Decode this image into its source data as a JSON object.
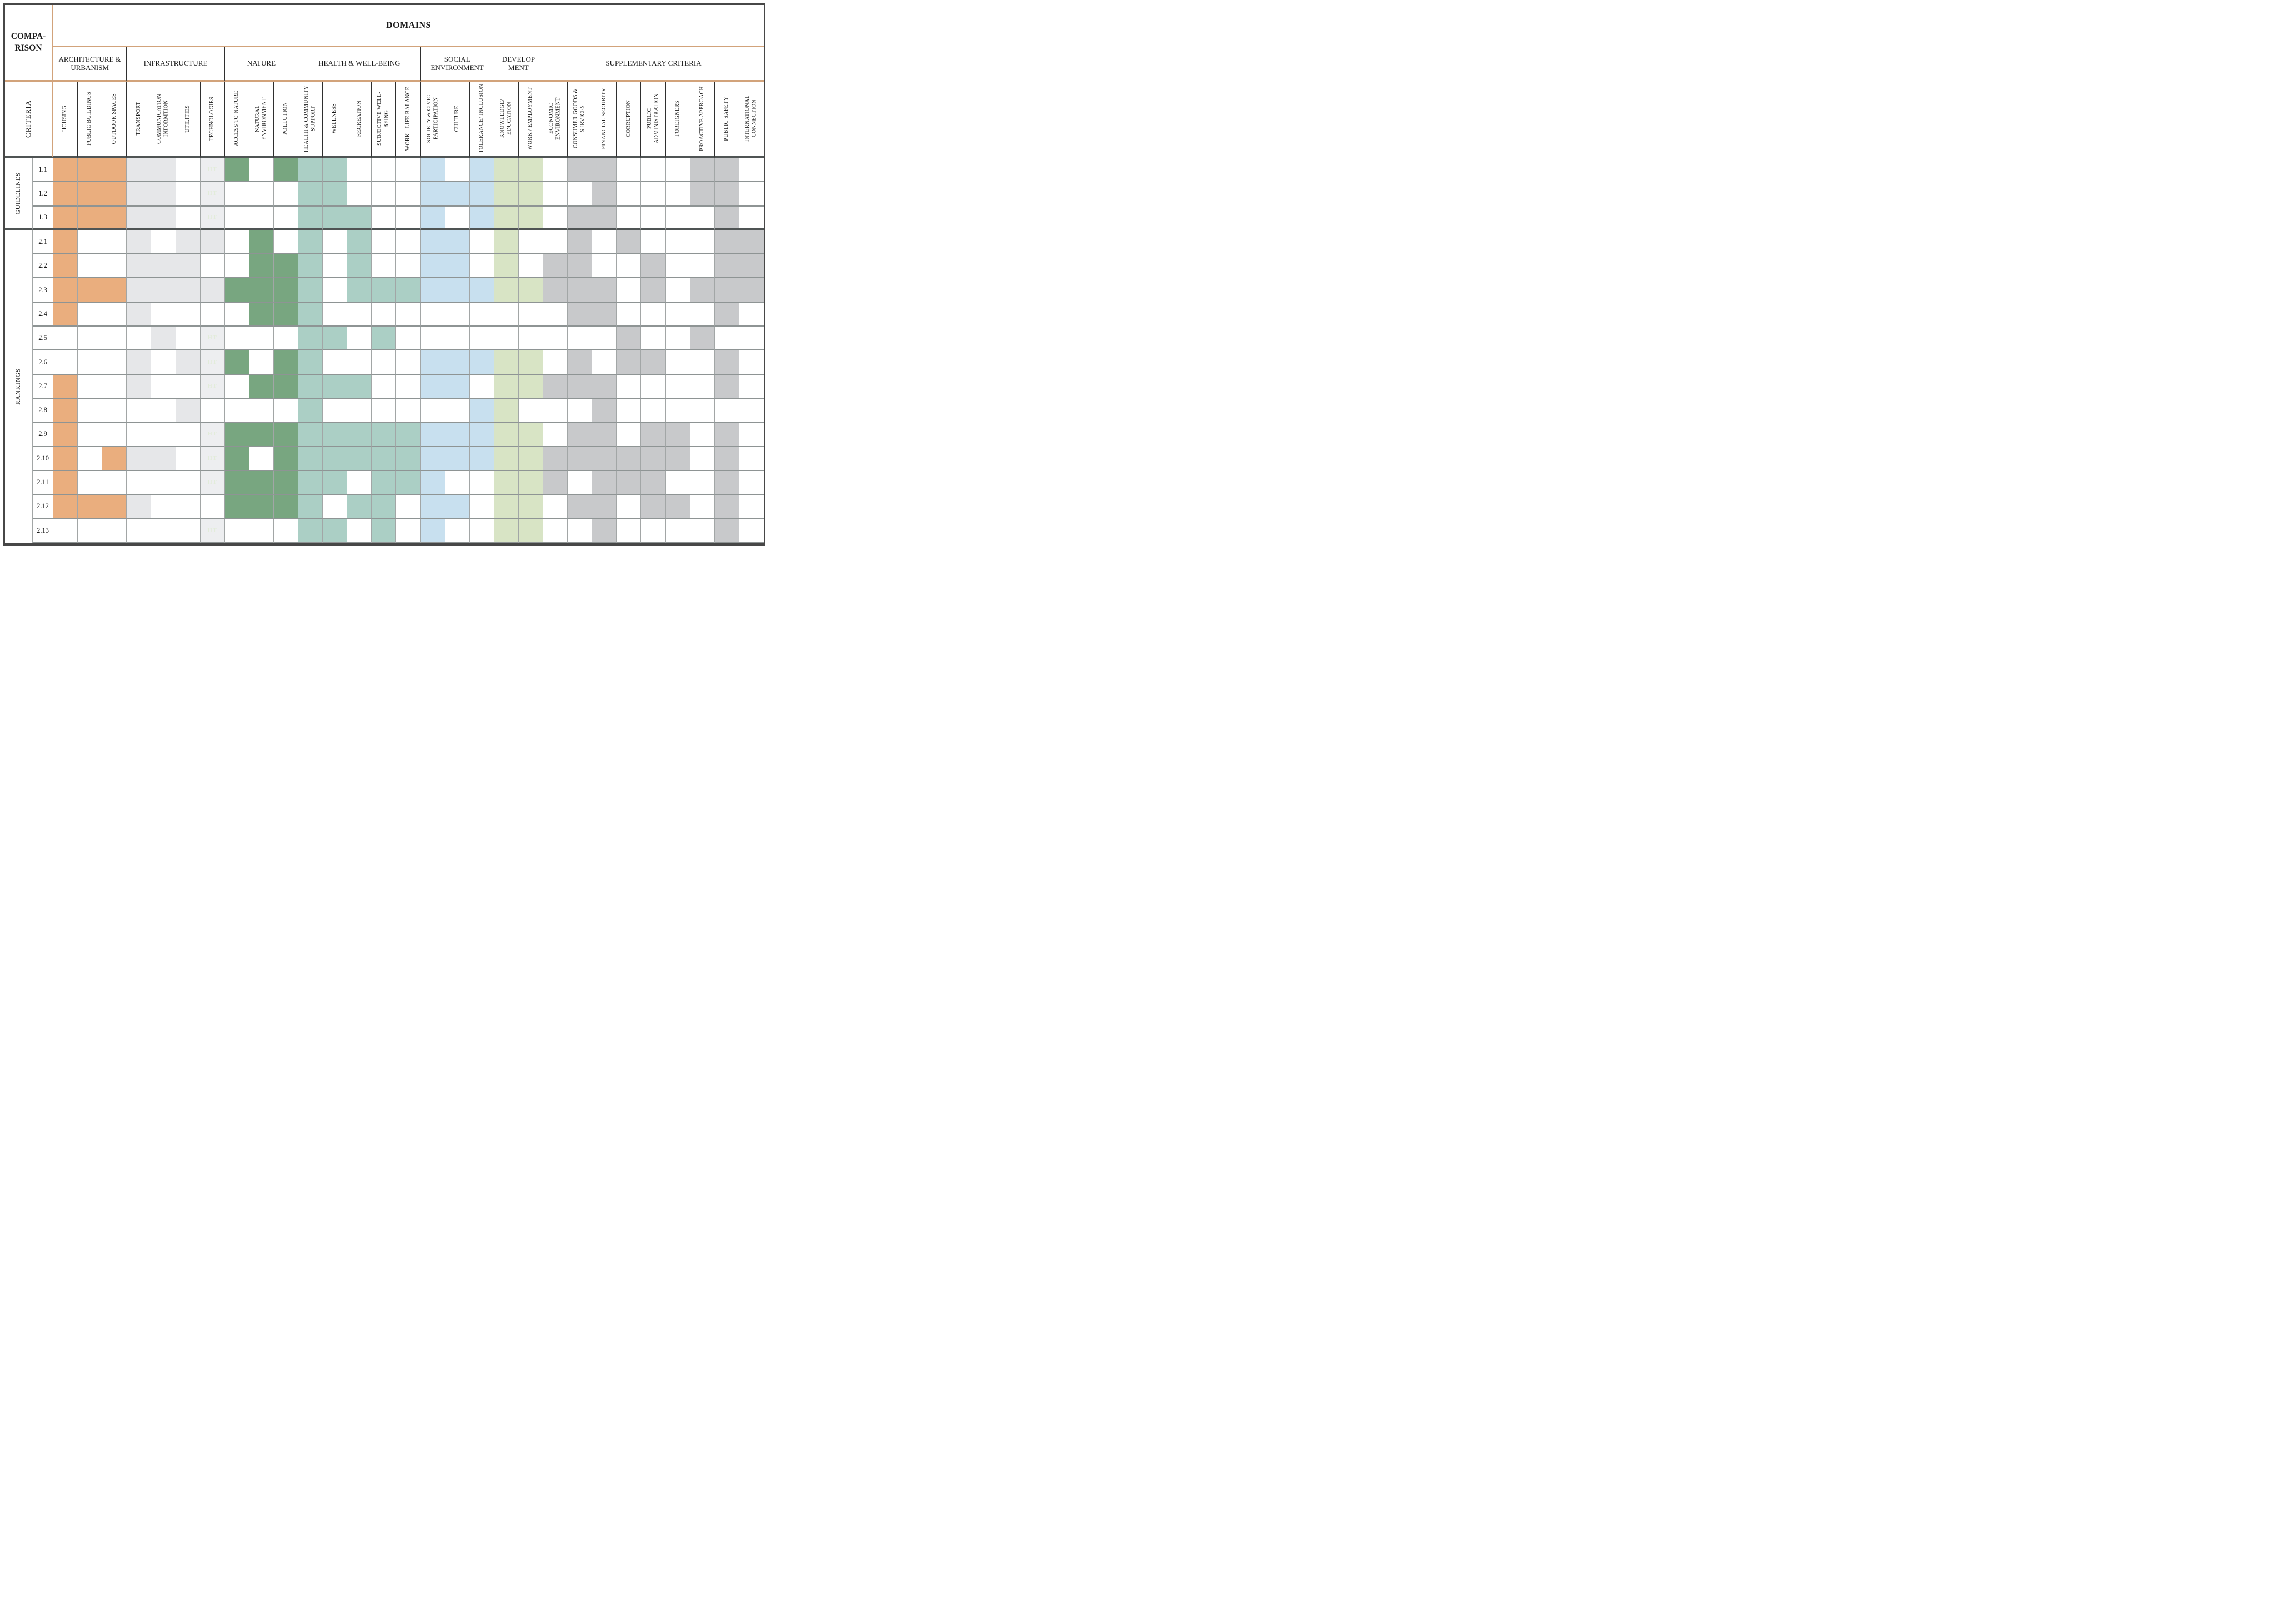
{
  "header": {
    "comparison": "COMPA-RISON",
    "domains": "DOMAINS",
    "criteria": "CRITERIA"
  },
  "domain_groups": [
    {
      "label": "ARCHITECTURE & URBANISM",
      "span": 3
    },
    {
      "label": "INFRASTRUCTURE",
      "span": 4
    },
    {
      "label": "NATURE",
      "span": 3
    },
    {
      "label": "HEALTH & WELL-BEING",
      "span": 5
    },
    {
      "label": "SOCIAL ENVIRONMENT",
      "span": 3
    },
    {
      "label": "DEVELOP MENT",
      "span": 2
    },
    {
      "label": "SUPPLEMENTARY CRITERIA",
      "span": 9
    }
  ],
  "columns": [
    "HOUSING",
    "PUBLIC BUILDINGS",
    "OUTDOOR SPACES",
    "TRANSPORT",
    "COMMUNICATION INFORMTION",
    "UTILITIES",
    "TECHNOLOGIES",
    "ACCESS TO NATURE",
    "NATURAL ENVIRONMENT",
    "POLLUTION",
    "HEALTH & COMMUNITY SUPPORT",
    "WELLNESS",
    "RECREATION",
    "SUBJECTIVE WELL- BEING",
    "WORK - LIFE BALANCE",
    "SOCIETY & CIVIC PARTICIPATION",
    "CULTURE",
    "TOLERANCE/ INCLUSION",
    "KNOWLEDGE/ EDUCATION",
    "WORK / EMPLOYMENT",
    "ECONOMIC ENVIRONMENT",
    "CONSUMER GOODS & SERVICES",
    "FINANCIAL SECURITY",
    "CORRUPTION",
    "PUBLIC ADMINISTRATION",
    "FOREIGNERS",
    "PROACTIVE APPROACH",
    "PUBLIC SAFETY",
    "INTERNATIONAL CONNECTION"
  ],
  "row_groups": [
    {
      "label": "GUIDELINES",
      "rows": [
        "1.1",
        "1.2",
        "1.3"
      ]
    },
    {
      "label": "RANKINGS",
      "rows": [
        "2.1",
        "2.2",
        "2.3",
        "2.4",
        "2.5",
        "2.6",
        "2.7",
        "2.8",
        "2.9",
        "2.10",
        "2.11",
        "2.12",
        "2.13"
      ]
    }
  ],
  "cell_marker": {
    "code": "T",
    "text": "HT"
  },
  "colors": {
    "O": "#EAAE7E",
    "G": "#E6E7E9",
    "T": "#EDEEF0",
    "N": "#78A680",
    "t": "#ABCFC5",
    "B": "#C8E0EF",
    "K": "#D8E4C5",
    "S": "#C8C9CB",
    "W": "#FFFFFF",
    "accent_border": "#D2A37B",
    "ht_text": "#E2ECDA"
  },
  "matrix": {
    "1.1": "OOOGGWTNWNttWWWBWBKKWSSWWWSSW",
    "1.2": "OOOGGWTWWWttWWWBBBKKWWSWWWSSW",
    "1.3": "OOOGGWTWWWtttWWBWBKKWSSWWWWSW",
    "2.1": "OWWGWGGWNWtWtWWBBWKWWSWSWWWSS",
    "2.2": "OWWGGGWWNNtWtWWBBWKWSSWWSWWSS",
    "2.3": "OOOGGGGNNNtWtttBBBKKSSSWSWSSS",
    "2.4": "OWWGWWWWNNtWWWWWWWWWWSSWWWWSW",
    "2.5": "WWWWGWTWWWttWtWWWWWWWWWSWWSWW",
    "2.6": "WWWGWGTNWNtWWWWBBBKKWSWSSWWSW",
    "2.7": "OWWGWWTWNNtttWWBBWKKSSSWWWWSW",
    "2.8": "OWWWWGWWWWtWWWWWWBKWWWSWWWWWW",
    "2.9": "OWWWWWTNNNtttttBBBKKWSSWSSWSW",
    "2.10": "OWOGGWTNWNtttttBBBKKSSSSSSWSW",
    "2.11": "OWWWWWTNNNttWttBWWKKSWSSSWWSW",
    "2.12": "OOOGWWWNNNtWttWBBWKKWSSWSSWSW",
    "2.13": "WWWWWWTWWWttWtWBWWKKWWSWWWWSW"
  }
}
